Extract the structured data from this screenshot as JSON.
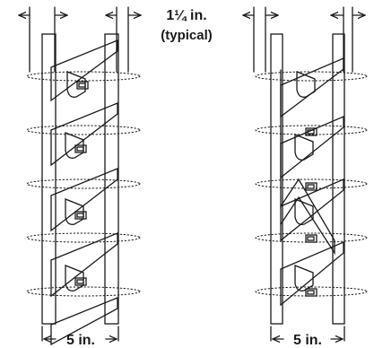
{
  "labels": {
    "spacing_line1": "1¼ in.",
    "spacing_line2": "(typical)",
    "width_left": "5 in.",
    "width_right": "5 in."
  },
  "colors": {
    "line": "#1a1a1a",
    "background": "#ffffff"
  }
}
